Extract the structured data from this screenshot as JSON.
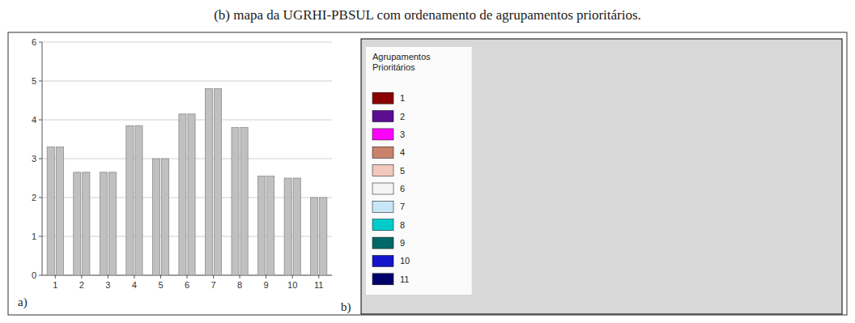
{
  "chart_data": [
    {
      "type": "bar",
      "title": "(b) mapa da UGRHI-PBSUL com ordenamento de agrupamentos prioritários.",
      "categories": [
        "1",
        "2",
        "3",
        "4",
        "5",
        "6",
        "7",
        "8",
        "9",
        "10",
        "11"
      ],
      "series": [
        {
          "color": "#c0c0c0",
          "values": [
            3.3,
            2.65,
            2.65,
            3.85,
            3.0,
            4.15,
            4.8,
            3.8,
            2.55,
            2.5,
            2.0
          ]
        },
        {
          "color": "#c0c0c0",
          "values": [
            3.3,
            2.65,
            2.65,
            3.85,
            3.0,
            4.15,
            4.8,
            3.8,
            2.55,
            2.5,
            2.0
          ]
        }
      ],
      "ylim": [
        0,
        6
      ],
      "yticks": [
        0,
        1,
        2,
        3,
        4,
        5,
        6
      ],
      "grid": true,
      "annotations": [
        "a)"
      ]
    },
    {
      "type": "map",
      "title": "Agrupamentos\nPrioritários",
      "categories": [
        "1",
        "2",
        "3",
        "4",
        "5",
        "6",
        "7",
        "8",
        "9",
        "10",
        "11"
      ],
      "colors": [
        "#8b0000",
        "#5b0e91",
        "#ff00ff",
        "#c8836a",
        "#f2c9bc",
        "#f5f5f5",
        "#c8e6f5",
        "#00cccc",
        "#006868",
        "#1414cc",
        "#00006b"
      ],
      "legend": "upper left",
      "annotations": [
        "b)"
      ]
    }
  ]
}
